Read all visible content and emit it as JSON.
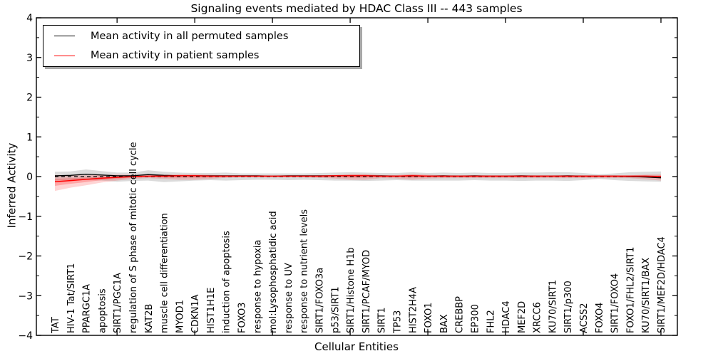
{
  "figure": {
    "title": "Signaling events mediated by HDAC Class III -- 443 samples",
    "xlabel": "Cellular Entities",
    "ylabel": "Inferred Activity"
  },
  "legend": {
    "entries": [
      {
        "label": "Mean activity in all permuted samples",
        "color": "#000000"
      },
      {
        "label": "Mean activity in patient samples",
        "color": "#ff0000"
      }
    ]
  },
  "chart_data": {
    "type": "line",
    "title": "Signaling events mediated by HDAC Class III -- 443 samples",
    "xlabel": "Cellular Entities",
    "ylabel": "Inferred Activity",
    "ylim": [
      -4,
      4
    ],
    "grid": false,
    "legend_position": "upper left",
    "yticks": [
      {
        "value": 4,
        "label": "4"
      },
      {
        "value": 3,
        "label": "3"
      },
      {
        "value": 2,
        "label": "2"
      },
      {
        "value": 1,
        "label": "1"
      },
      {
        "value": 0,
        "label": "0"
      },
      {
        "value": -1,
        "label": "−1"
      },
      {
        "value": -2,
        "label": "−2"
      },
      {
        "value": -3,
        "label": "−3"
      },
      {
        "value": -4,
        "label": "−4"
      }
    ],
    "categories": [
      "TAT",
      "HIV-1 Tat/SIRT1",
      "PPARGC1A",
      "apoptosis",
      "SIRT1/PGC1A",
      "regulation of S phase of mitotic cell cycle",
      "KAT2B",
      "muscle cell differentiation",
      "MYOD1",
      "CDKN1A",
      "HIST1H1E",
      "induction of apoptosis",
      "FOXO3",
      "response to hypoxia",
      "mol:Lysophosphatidic acid",
      "response to UV",
      "response to nutrient levels",
      "SIRT1/FOXO3a",
      "p53/SIRT1",
      "SIRT1/Histone H1b",
      "SIRT1/PCAF/MYOD",
      "SIRT1",
      "TP53",
      "HIST2H4A",
      "FOXO1",
      "BAX",
      "CREBBP",
      "EP300",
      "FHL2",
      "HDAC4",
      "MEF2D",
      "XRCC6",
      "KU70/SIRT1",
      "SIRT1/p300",
      "ACSS2",
      "FOXO4",
      "SIRT1/FOXO4",
      "FOXO1/FHL2/SIRT1",
      "KU70/SIRT1/BAX",
      "SIRT1/MEF2D/HDAC4"
    ],
    "series": [
      {
        "name": "Mean activity in all permuted samples",
        "color": "#000000",
        "style": "solid",
        "values": [
          0.02,
          0.03,
          0.06,
          0.04,
          0.02,
          0.02,
          0.05,
          0.03,
          0.02,
          0.02,
          0.02,
          0.02,
          0.02,
          0.02,
          0.01,
          0.02,
          0.02,
          0.02,
          0.02,
          0.02,
          0.02,
          0.02,
          0.01,
          0.02,
          0.01,
          0.02,
          0.01,
          0.02,
          0.01,
          0.01,
          0.02,
          0.01,
          0.01,
          0.02,
          0.01,
          0.01,
          0.01,
          0.0,
          -0.01,
          -0.03
        ]
      },
      {
        "name": "Mean activity in patient samples",
        "color": "#ff0000",
        "style": "solid",
        "values": [
          -0.13,
          -0.1,
          -0.07,
          -0.04,
          -0.02,
          0.0,
          0.01,
          0.01,
          0.02,
          0.02,
          0.01,
          0.01,
          0.01,
          0.01,
          0.01,
          0.01,
          0.01,
          0.01,
          0.02,
          0.02,
          0.02,
          0.01,
          0.01,
          0.02,
          0.01,
          0.01,
          0.01,
          0.01,
          0.01,
          0.01,
          0.01,
          0.01,
          0.01,
          0.01,
          0.01,
          0.01,
          0.01,
          0.01,
          0.01,
          0.0
        ]
      }
    ],
    "bands": [
      {
        "name": "permuted-band",
        "color": "rgba(0,0,0,0.14)",
        "upper": [
          0.12,
          0.13,
          0.18,
          0.14,
          0.1,
          0.1,
          0.16,
          0.12,
          0.1,
          0.09,
          0.09,
          0.1,
          0.08,
          0.08,
          0.08,
          0.08,
          0.08,
          0.09,
          0.1,
          0.11,
          0.1,
          0.09,
          0.09,
          0.11,
          0.09,
          0.1,
          0.09,
          0.1,
          0.09,
          0.09,
          0.1,
          0.1,
          0.11,
          0.11,
          0.09,
          0.06,
          0.08,
          0.11,
          0.12,
          0.13
        ],
        "lower": [
          -0.1,
          -0.09,
          -0.08,
          -0.1,
          -0.13,
          -0.11,
          -0.1,
          -0.14,
          -0.12,
          -0.1,
          -0.09,
          -0.1,
          -0.09,
          -0.08,
          -0.08,
          -0.09,
          -0.08,
          -0.09,
          -0.1,
          -0.1,
          -0.11,
          -0.1,
          -0.09,
          -0.1,
          -0.1,
          -0.1,
          -0.1,
          -0.09,
          -0.1,
          -0.1,
          -0.11,
          -0.1,
          -0.1,
          -0.11,
          -0.09,
          -0.06,
          -0.09,
          -0.11,
          -0.12,
          -0.13
        ]
      },
      {
        "name": "patient-band",
        "color": "rgba(255,0,0,0.17)",
        "upper": [
          0.04,
          0.03,
          0.03,
          0.04,
          0.05,
          0.05,
          0.04,
          0.05,
          0.06,
          0.06,
          0.05,
          0.03,
          0.02,
          0.02,
          0.02,
          0.02,
          0.02,
          0.03,
          0.04,
          0.07,
          0.07,
          0.04,
          0.04,
          0.07,
          0.05,
          0.03,
          0.03,
          0.03,
          0.03,
          0.03,
          0.03,
          0.03,
          0.03,
          0.03,
          0.03,
          0.03,
          0.03,
          0.03,
          0.05,
          0.06
        ],
        "lower": [
          -0.36,
          -0.28,
          -0.22,
          -0.15,
          -0.1,
          -0.06,
          -0.04,
          -0.06,
          -0.08,
          -0.08,
          -0.06,
          -0.03,
          -0.02,
          -0.02,
          -0.02,
          -0.02,
          -0.02,
          -0.03,
          -0.05,
          -0.08,
          -0.08,
          -0.04,
          -0.05,
          -0.08,
          -0.05,
          -0.04,
          -0.04,
          -0.04,
          -0.04,
          -0.04,
          -0.04,
          -0.04,
          -0.04,
          -0.04,
          -0.04,
          -0.04,
          -0.04,
          -0.04,
          -0.07,
          -0.1
        ]
      }
    ],
    "zero_line": {
      "y": 0,
      "style": "dashed",
      "color": "#000000"
    }
  }
}
